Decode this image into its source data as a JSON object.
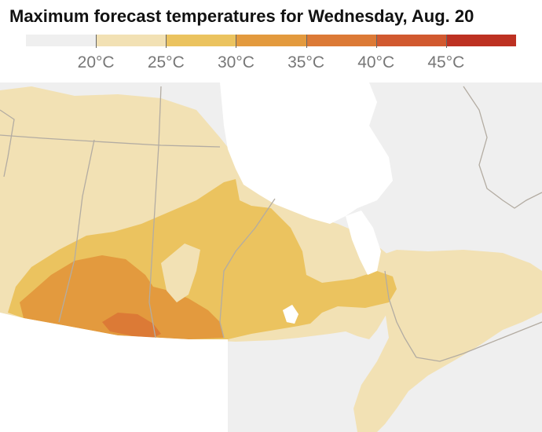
{
  "title": "Maximum forecast temperatures for Wednesday, Aug. 20",
  "legend": {
    "colors": [
      "#efefef",
      "#f2e1b4",
      "#ebc35f",
      "#e39a3e",
      "#dc7a36",
      "#d1592f",
      "#bd3122"
    ],
    "breaks": [
      20,
      25,
      30,
      35,
      40,
      45
    ],
    "labels": [
      "20°C",
      "25°C",
      "30°C",
      "35°C",
      "40°C",
      "45°C"
    ]
  },
  "map": {
    "land_color": "#efefef",
    "water_color": "#ffffff",
    "border_color": "#b3aca2"
  }
}
